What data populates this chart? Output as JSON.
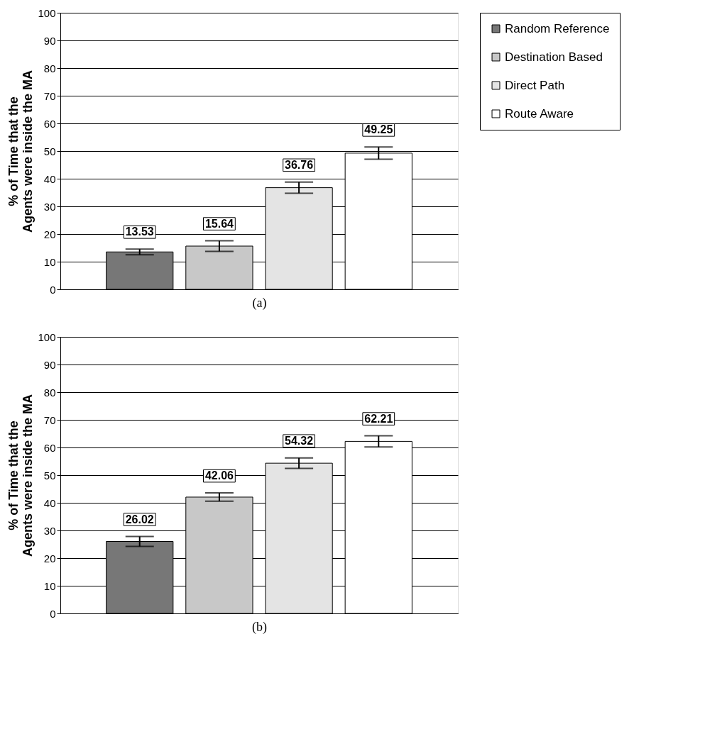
{
  "chart_data": [
    {
      "type": "bar",
      "categories": [
        null
      ],
      "xlabel": "(a)",
      "ylabel": "% of Time that the Agents were inside the MA",
      "ylim": [
        0,
        100
      ],
      "yticks": [
        0,
        10,
        20,
        30,
        40,
        50,
        60,
        70,
        80,
        90,
        100
      ],
      "grid": "y",
      "legend": "right",
      "tick_labels": "y",
      "data_labels": true,
      "series": [
        {
          "name": "Random Reference",
          "color": "#777777",
          "values": [
            13.53
          ],
          "errors": [
            1.0
          ]
        },
        {
          "name": "Destination Based",
          "color": "#c8c8c8",
          "values": [
            15.64
          ],
          "errors": [
            1.9
          ]
        },
        {
          "name": "Direct Path",
          "color": "#e4e4e4",
          "values": [
            36.76
          ],
          "errors": [
            2.0
          ]
        },
        {
          "name": "Route Aware",
          "color": "#ffffff",
          "values": [
            49.25
          ],
          "errors": [
            2.2
          ]
        }
      ]
    },
    {
      "type": "bar",
      "categories": [
        null
      ],
      "xlabel": "(b)",
      "ylabel": "% of Time that the Agents were inside the MA",
      "ylim": [
        0,
        100
      ],
      "yticks": [
        0,
        10,
        20,
        30,
        40,
        50,
        60,
        70,
        80,
        90,
        100
      ],
      "grid": "y",
      "legend": "right",
      "tick_labels": "y",
      "data_labels": true,
      "series": [
        {
          "name": "Random Reference",
          "color": "#777777",
          "values": [
            26.02
          ],
          "errors": [
            1.8
          ]
        },
        {
          "name": "Destination Based",
          "color": "#c8c8c8",
          "values": [
            42.06
          ],
          "errors": [
            1.5
          ]
        },
        {
          "name": "Direct Path",
          "color": "#e4e4e4",
          "values": [
            54.32
          ],
          "errors": [
            1.9
          ]
        },
        {
          "name": "Route Aware",
          "color": "#ffffff",
          "values": [
            62.21
          ],
          "errors": [
            2.0
          ]
        }
      ]
    }
  ]
}
